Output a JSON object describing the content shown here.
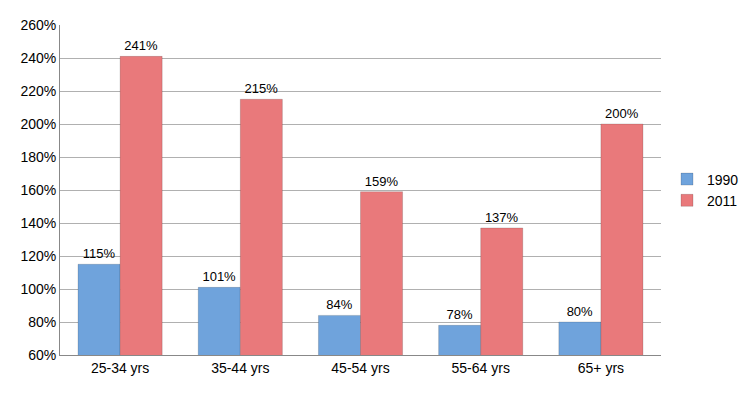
{
  "chart_data": {
    "type": "bar",
    "categories": [
      "25-34 yrs",
      "35-44 yrs",
      "45-54 yrs",
      "55-64 yrs",
      "65+ yrs"
    ],
    "series": [
      {
        "name": "1990",
        "color": "#6fa3dc",
        "values": [
          115,
          101,
          84,
          78,
          80
        ],
        "value_labels": [
          "115%",
          "101%",
          "84%",
          "78%",
          "80%"
        ]
      },
      {
        "name": "2011",
        "color": "#e9797b",
        "values": [
          241,
          215,
          159,
          137,
          200
        ],
        "value_labels": [
          "241%",
          "215%",
          "159%",
          "137%",
          "200%"
        ]
      }
    ],
    "ylim": [
      60,
      260
    ],
    "yticks": [
      {
        "value": 60,
        "label": "60%"
      },
      {
        "value": 80,
        "label": "80%"
      },
      {
        "value": 100,
        "label": "100%"
      },
      {
        "value": 120,
        "label": "120%"
      },
      {
        "value": 140,
        "label": "140%"
      },
      {
        "value": 160,
        "label": "160%"
      },
      {
        "value": 180,
        "label": "180%"
      },
      {
        "value": 200,
        "label": "200%"
      },
      {
        "value": 220,
        "label": "220%"
      },
      {
        "value": 240,
        "label": "240%"
      },
      {
        "value": 260,
        "label": "260%"
      }
    ],
    "grid": true,
    "legend": "right",
    "data_labels": true
  }
}
